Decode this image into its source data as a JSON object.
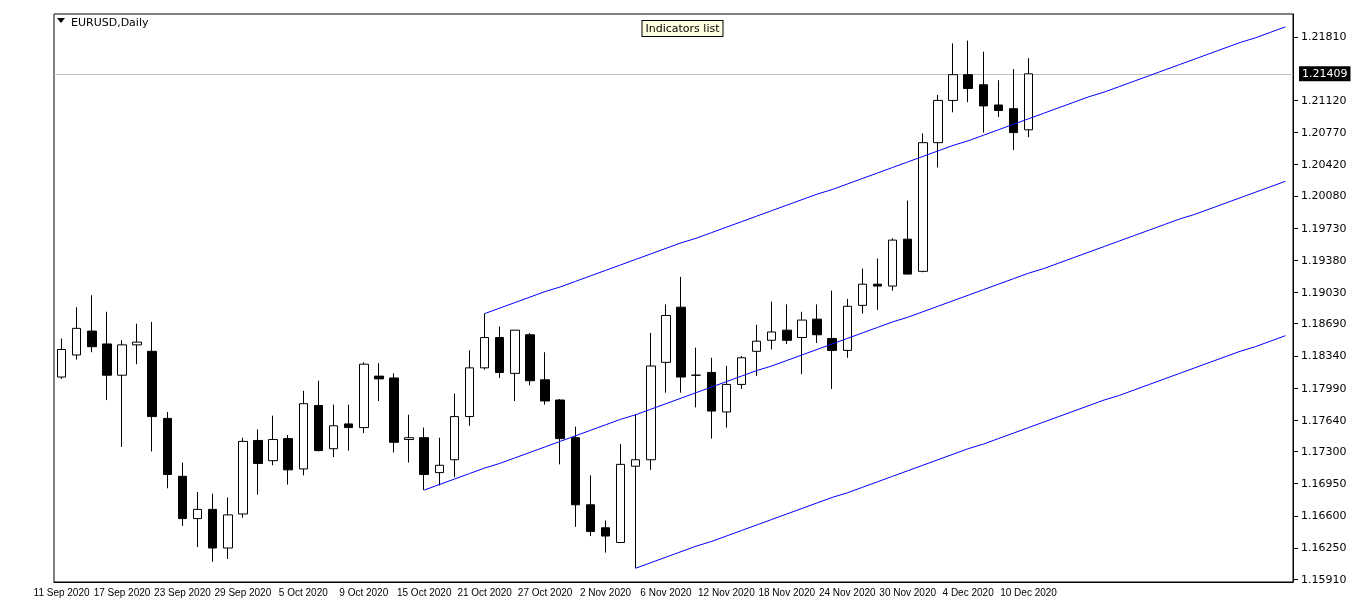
{
  "chart_data": {
    "type": "candlestick",
    "title": "EURUSD,Daily",
    "annotations": [
      "Indicators list"
    ],
    "categories": [
      "11 Sep 2020",
      null,
      null,
      null,
      "17 Sep 2020",
      null,
      null,
      null,
      "23 Sep 2020",
      null,
      null,
      null,
      "29 Sep 2020",
      null,
      null,
      null,
      "5 Oct 2020",
      null,
      null,
      null,
      "9 Oct 2020",
      null,
      null,
      null,
      "15 Oct 2020",
      null,
      null,
      null,
      "21 Oct 2020",
      null,
      null,
      null,
      "27 Oct 2020",
      null,
      null,
      null,
      "2 Nov 2020",
      null,
      null,
      null,
      "6 Nov 2020",
      null,
      null,
      null,
      "12 Nov 2020",
      null,
      null,
      null,
      "18 Nov 2020",
      null,
      null,
      null,
      "24 Nov 2020",
      null,
      null,
      null,
      "30 Nov 2020",
      null,
      null,
      null,
      "4 Dec 2020",
      null,
      null,
      null,
      "10 Dec 2020",
      null,
      null,
      null,
      null,
      null,
      null,
      null,
      null,
      null,
      null,
      null,
      null,
      null,
      null,
      null,
      null,
      null
    ],
    "ohlc": [
      [
        1.1811,
        1.1853,
        1.1809,
        1.1841
      ],
      [
        1.1835,
        1.1887,
        1.183,
        1.1864
      ],
      [
        1.1861,
        1.19,
        1.1838,
        1.1844
      ],
      [
        1.1847,
        1.1882,
        1.1786,
        1.1813
      ],
      [
        1.1813,
        1.1851,
        1.1735,
        1.1846
      ],
      [
        1.1846,
        1.1869,
        1.1825,
        1.1849
      ],
      [
        1.1839,
        1.1871,
        1.173,
        1.1768
      ],
      [
        1.1766,
        1.1773,
        1.169,
        1.1705
      ],
      [
        1.1703,
        1.1718,
        1.1649,
        1.1657
      ],
      [
        1.1657,
        1.1686,
        1.1626,
        1.1667
      ],
      [
        1.1667,
        1.1684,
        1.161,
        1.1625
      ],
      [
        1.1625,
        1.168,
        1.1613,
        1.1661
      ],
      [
        1.1662,
        1.1745,
        1.1658,
        1.1741
      ],
      [
        1.1742,
        1.1754,
        1.1683,
        1.1717
      ],
      [
        1.172,
        1.1769,
        1.1715,
        1.1743
      ],
      [
        1.1744,
        1.1748,
        1.1694,
        1.171
      ],
      [
        1.1711,
        1.1796,
        1.1704,
        1.1782
      ],
      [
        1.178,
        1.1807,
        1.173,
        1.1731
      ],
      [
        1.1733,
        1.1781,
        1.1724,
        1.1758
      ],
      [
        1.176,
        1.1781,
        1.1731,
        1.1756
      ],
      [
        1.1756,
        1.1827,
        1.175,
        1.1825
      ],
      [
        1.1812,
        1.1826,
        1.1785,
        1.1809
      ],
      [
        1.181,
        1.1815,
        1.1729,
        1.174
      ],
      [
        1.1743,
        1.177,
        1.1718,
        1.1745
      ],
      [
        1.1745,
        1.1756,
        1.1688,
        1.1705
      ],
      [
        1.1707,
        1.1745,
        1.1693,
        1.1715
      ],
      [
        1.1721,
        1.1793,
        1.1702,
        1.1768
      ],
      [
        1.1768,
        1.184,
        1.1758,
        1.1821
      ],
      [
        1.1821,
        1.188,
        1.1819,
        1.1854
      ],
      [
        1.1854,
        1.1866,
        1.181,
        1.1816
      ],
      [
        1.1815,
        1.1862,
        1.1785,
        1.1862
      ],
      [
        1.1857,
        1.1859,
        1.1802,
        1.1807
      ],
      [
        1.1808,
        1.1838,
        1.1781,
        1.1785
      ],
      [
        1.1786,
        1.1787,
        1.1716,
        1.1744
      ],
      [
        1.1745,
        1.1757,
        1.1648,
        1.1672
      ],
      [
        1.1672,
        1.1704,
        1.1638,
        1.1643
      ],
      [
        1.1647,
        1.1655,
        1.162,
        1.1638
      ],
      [
        1.1631,
        1.1738,
        1.1631,
        1.1716
      ],
      [
        1.1714,
        1.177,
        1.1603,
        1.1721
      ],
      [
        1.1721,
        1.1859,
        1.171,
        1.1823
      ],
      [
        1.1827,
        1.189,
        1.1794,
        1.1878
      ],
      [
        1.1887,
        1.192,
        1.1794,
        1.1811
      ],
      [
        1.1813,
        1.1843,
        1.1778,
        1.1813
      ],
      [
        1.1816,
        1.1832,
        1.1744,
        1.1774
      ],
      [
        1.1773,
        1.1823,
        1.1756,
        1.1803
      ],
      [
        1.1803,
        1.1834,
        1.1798,
        1.1832
      ],
      [
        1.1839,
        1.1868,
        1.1812,
        1.185
      ],
      [
        1.1851,
        1.1893,
        1.1841,
        1.186
      ],
      [
        1.1862,
        1.189,
        1.1847,
        1.1851
      ],
      [
        1.1854,
        1.1882,
        1.1814,
        1.1873
      ],
      [
        1.1874,
        1.189,
        1.1848,
        1.1857
      ],
      [
        1.1853,
        1.1905,
        1.1798,
        1.184
      ],
      [
        1.184,
        1.1896,
        1.1832,
        1.1888
      ],
      [
        1.1889,
        1.1929,
        1.188,
        1.1912
      ],
      [
        1.1912,
        1.194,
        1.1884,
        1.191
      ],
      [
        1.191,
        1.1962,
        1.1905,
        1.196
      ],
      [
        1.1961,
        1.2003,
        1.1923,
        1.1923
      ],
      [
        1.1926,
        1.2076,
        1.1925,
        1.2066
      ],
      [
        1.2066,
        1.2118,
        1.2039,
        1.2112
      ],
      [
        1.2112,
        1.2174,
        1.2099,
        1.214
      ],
      [
        1.214,
        1.2177,
        1.211,
        1.2125
      ],
      [
        1.2129,
        1.2165,
        1.2077,
        1.2106
      ],
      [
        1.2107,
        1.2134,
        1.2094,
        1.2101
      ],
      [
        1.2103,
        1.2146,
        1.2058,
        1.2077
      ],
      [
        1.208,
        1.2158,
        1.2072,
        1.21409
      ],
      null,
      null,
      null,
      null,
      null,
      null,
      null,
      null,
      null,
      null,
      null,
      null,
      null,
      null,
      null,
      null,
      null
    ],
    "series": [
      {
        "type": "line",
        "color": "#0000ff",
        "values": [
          null,
          null,
          null,
          null,
          null,
          null,
          null,
          null,
          null,
          null,
          null,
          null,
          null,
          null,
          null,
          null,
          null,
          null,
          null,
          null,
          null,
          null,
          null,
          null,
          null,
          null,
          null,
          null,
          1.188,
          1.1886,
          1.1892,
          1.1898,
          1.1904,
          1.1909,
          1.1915,
          1.1921,
          1.1927,
          1.1933,
          1.1939,
          1.1945,
          1.1951,
          1.1957,
          1.1962,
          1.1968,
          1.1974,
          1.198,
          1.1986,
          1.1992,
          1.1998,
          1.2004,
          1.201,
          1.2015,
          1.2021,
          1.2027,
          1.2033,
          1.2039,
          1.2045,
          1.2051,
          1.2057,
          1.2063,
          1.2068,
          1.2074,
          1.208,
          1.2086,
          1.2092,
          1.2098,
          1.2104,
          1.211,
          1.2116,
          1.2121,
          1.2127,
          1.2133,
          1.2139,
          1.2145,
          1.2151,
          1.2157,
          1.2163,
          1.2169,
          1.2175,
          1.218,
          1.2186,
          1.2192
        ]
      },
      {
        "type": "line",
        "color": "#0000ff",
        "values": [
          null,
          null,
          null,
          null,
          null,
          null,
          null,
          null,
          null,
          null,
          null,
          null,
          null,
          null,
          null,
          null,
          null,
          null,
          null,
          null,
          null,
          null,
          null,
          null,
          1.1688,
          1.1694,
          1.17,
          1.1706,
          1.1712,
          1.1717,
          1.1723,
          1.1729,
          1.1735,
          1.1741,
          1.1747,
          1.1753,
          1.1759,
          1.1765,
          1.177,
          1.1776,
          1.1782,
          1.1788,
          1.1794,
          1.18,
          1.1806,
          1.1812,
          1.1818,
          1.1823,
          1.1829,
          1.1835,
          1.1841,
          1.1847,
          1.1853,
          1.1859,
          1.1865,
          1.1871,
          1.1876,
          1.1882,
          1.1888,
          1.1894,
          1.19,
          1.1906,
          1.1912,
          1.1918,
          1.1924,
          1.1929,
          1.1935,
          1.1941,
          1.1947,
          1.1953,
          1.1959,
          1.1965,
          1.1971,
          1.1977,
          1.1983,
          1.1988,
          1.1994,
          1.2,
          1.2006,
          1.2012,
          1.2018,
          1.2024
        ]
      },
      {
        "type": "line",
        "color": "#0000ff",
        "values": [
          null,
          null,
          null,
          null,
          null,
          null,
          null,
          null,
          null,
          null,
          null,
          null,
          null,
          null,
          null,
          null,
          null,
          null,
          null,
          null,
          null,
          null,
          null,
          null,
          null,
          null,
          null,
          null,
          null,
          null,
          null,
          null,
          null,
          null,
          null,
          null,
          null,
          null,
          1.1603,
          1.1609,
          1.1615,
          1.1621,
          1.1627,
          1.1632,
          1.1638,
          1.1644,
          1.165,
          1.1656,
          1.1662,
          1.1668,
          1.1674,
          1.168,
          1.1685,
          1.1691,
          1.1697,
          1.1703,
          1.1709,
          1.1715,
          1.1721,
          1.1727,
          1.1733,
          1.1738,
          1.1744,
          1.175,
          1.1756,
          1.1762,
          1.1768,
          1.1774,
          1.178,
          1.1786,
          1.1791,
          1.1797,
          1.1803,
          1.1809,
          1.1815,
          1.1821,
          1.1827,
          1.1833,
          1.1839,
          1.1844,
          1.185,
          1.1856
        ]
      }
    ],
    "ylim": [
      1.1588,
      1.2206
    ],
    "yticks": [
      {
        "value": 1.1591,
        "label": "1.15910"
      },
      {
        "value": 1.1625,
        "label": "1.16250"
      },
      {
        "value": 1.166,
        "label": "1.16600"
      },
      {
        "value": 1.1695,
        "label": "1.16950"
      },
      {
        "value": 1.173,
        "label": "1.17300"
      },
      {
        "value": 1.1764,
        "label": "1.17640"
      },
      {
        "value": 1.1799,
        "label": "1.17990"
      },
      {
        "value": 1.1834,
        "label": "1.18340"
      },
      {
        "value": 1.1869,
        "label": "1.18690"
      },
      {
        "value": 1.1903,
        "label": "1.19030"
      },
      {
        "value": 1.1938,
        "label": "1.19380"
      },
      {
        "value": 1.1973,
        "label": "1.19730"
      },
      {
        "value": 1.2008,
        "label": "1.20080"
      },
      {
        "value": 1.2042,
        "label": "1.20420"
      },
      {
        "value": 1.2077,
        "label": "1.20770"
      },
      {
        "value": 1.2112,
        "label": "1.21120"
      },
      {
        "value": 1.2181,
        "label": "1.21810"
      }
    ],
    "ref_lines": [
      {
        "axis": "y",
        "value": 1.21409,
        "label": "1.21409",
        "color": "#c0c0c0"
      }
    ]
  }
}
